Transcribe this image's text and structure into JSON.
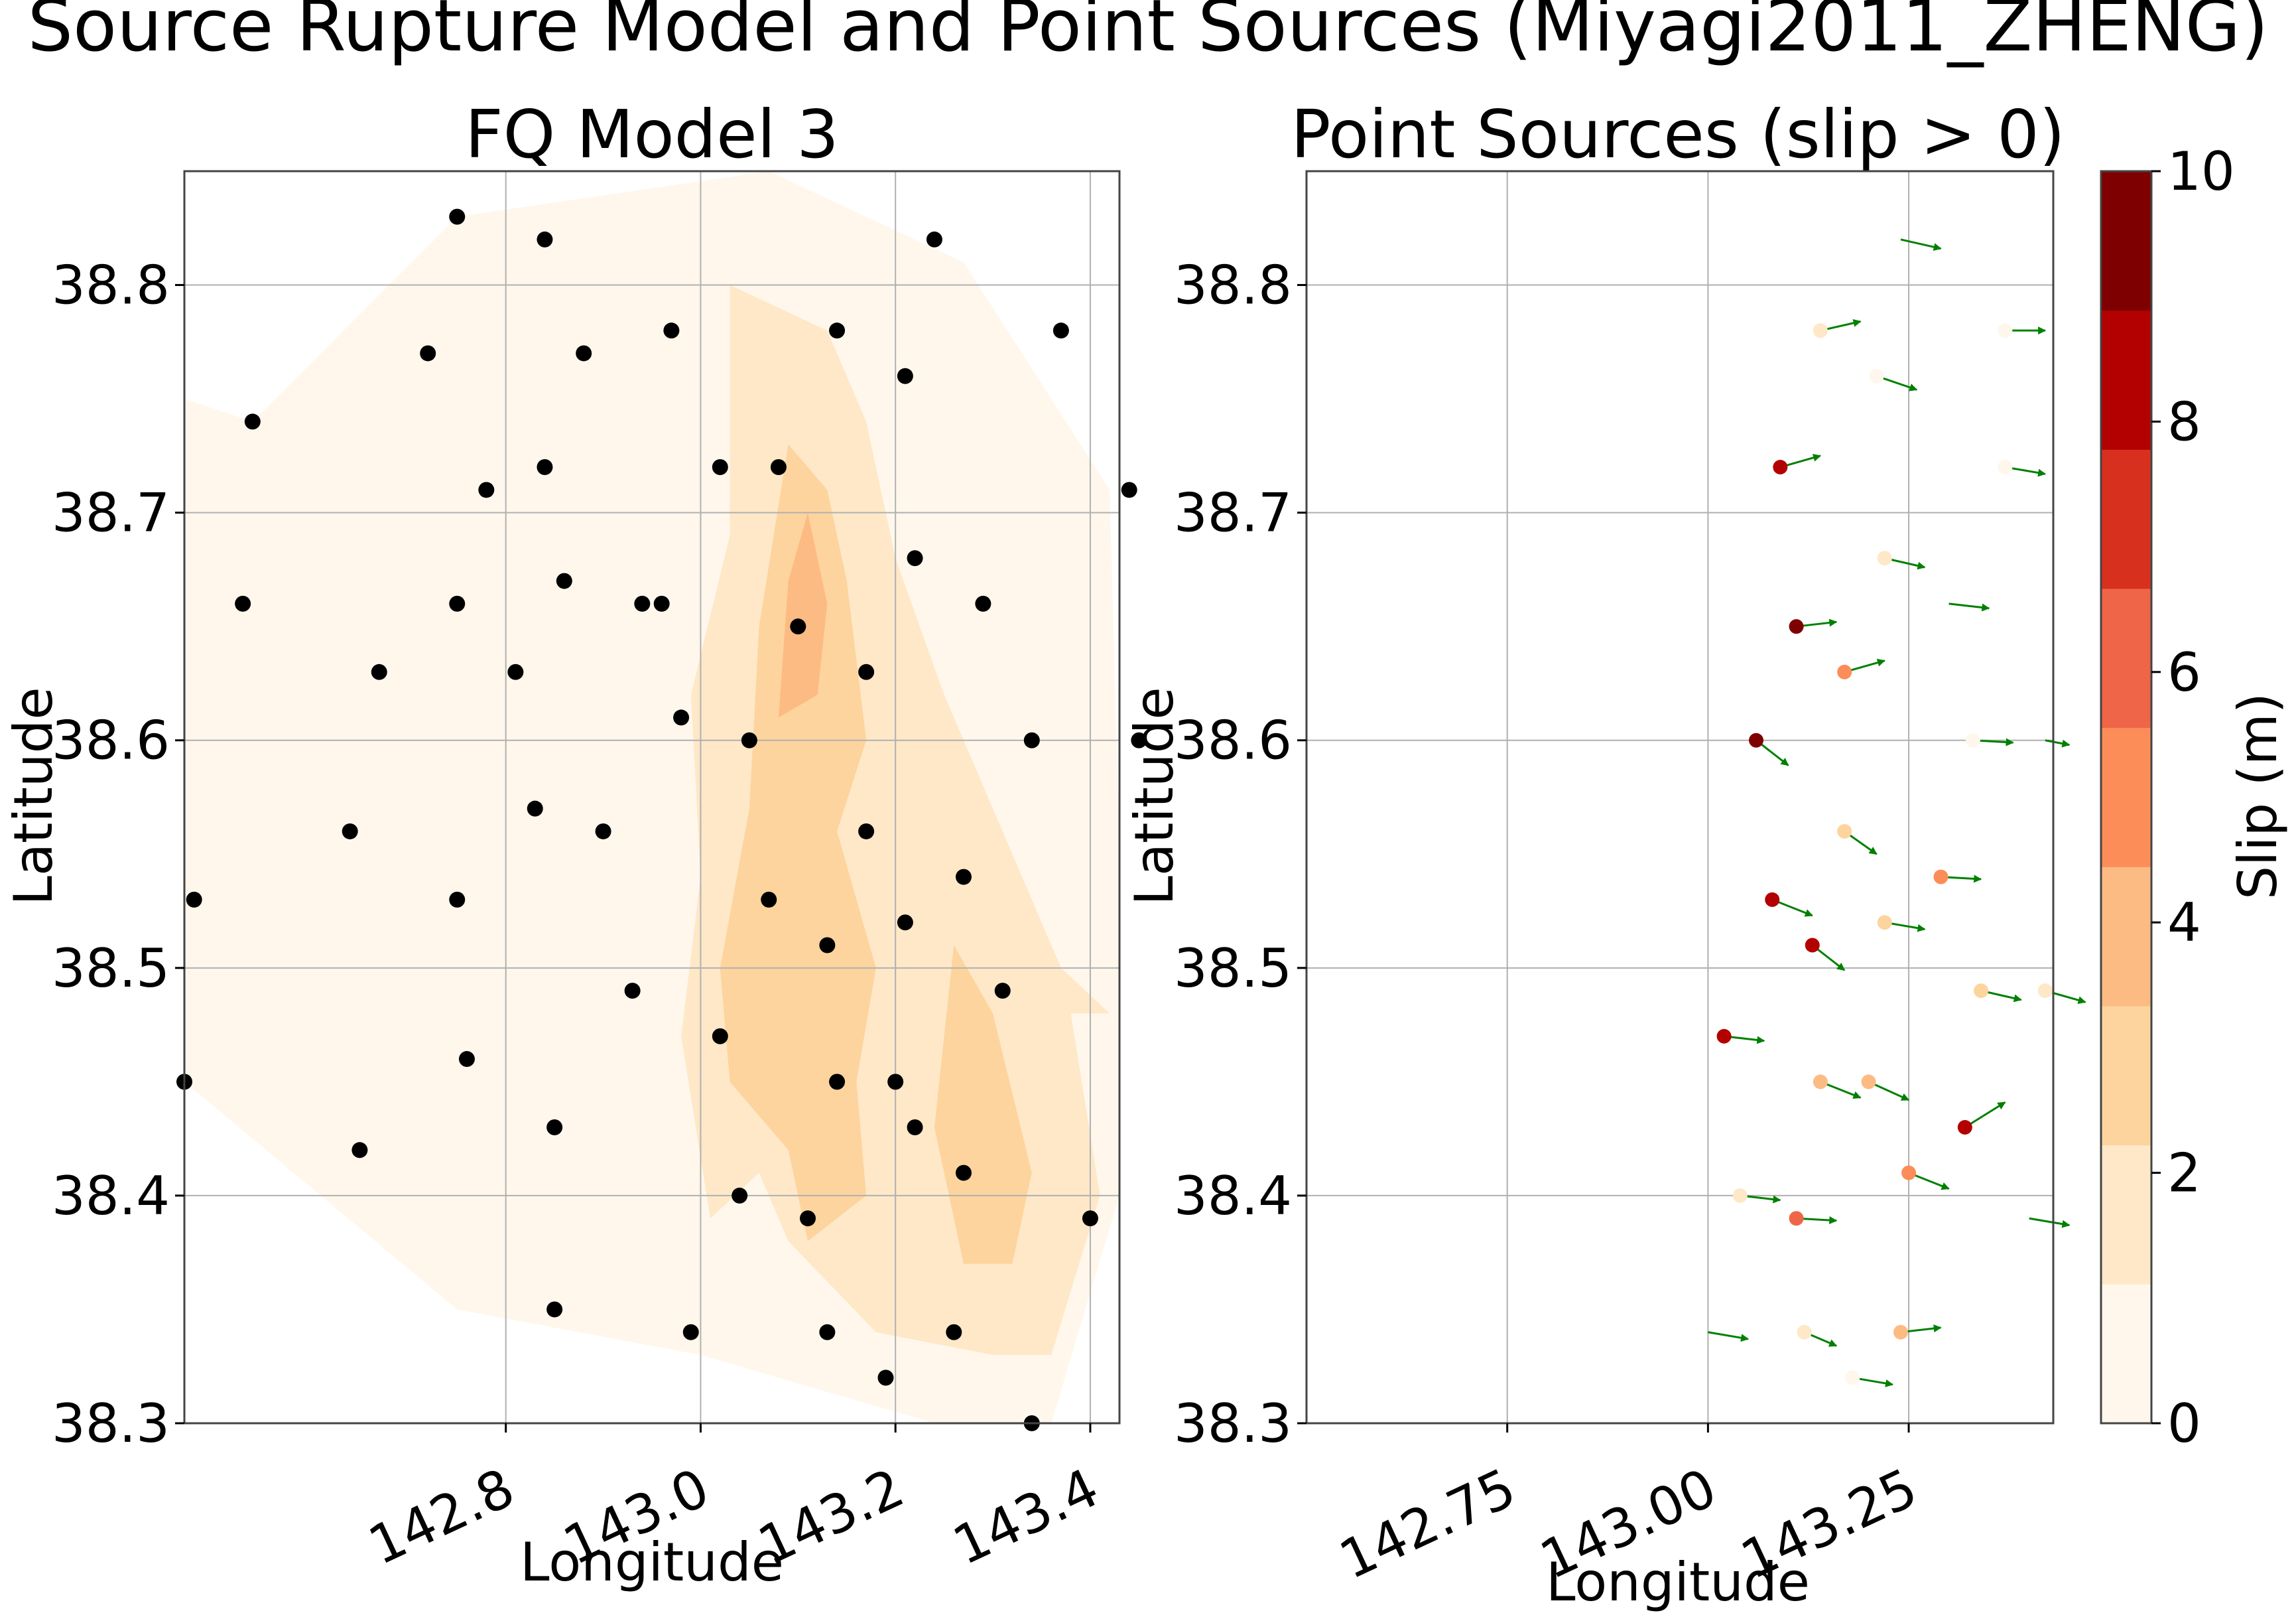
{
  "figure": {
    "suptitle": "Source Rupture Model and Point Sources (Miyagi2011_ZHENG)"
  },
  "chart_data": [
    {
      "type": "contour",
      "title": "FQ Model 3",
      "xlabel": "Longitude",
      "ylabel": "Latitude",
      "xlim": [
        142.47,
        143.43
      ],
      "ylim": [
        38.3,
        38.85
      ],
      "xticks": [
        142.8,
        143.0,
        143.2,
        143.4
      ],
      "xtick_labels": [
        "142.8",
        "143.0",
        "143.2",
        "143.4"
      ],
      "yticks": [
        38.3,
        38.4,
        38.5,
        38.6,
        38.7,
        38.8
      ],
      "ytick_labels": [
        "38.3",
        "38.4",
        "38.5",
        "38.6",
        "38.7",
        "38.8"
      ],
      "grid": true,
      "colormap": "OrRd",
      "contour_levels": [
        0,
        1,
        2,
        3,
        4,
        5,
        6,
        7,
        8,
        9,
        10
      ],
      "contours": [
        {
          "level": 0,
          "color": "#fff7ec",
          "polygon": [
            [
              142.75,
              38.83
            ],
            [
              143.07,
              38.85
            ],
            [
              143.27,
              38.81
            ],
            [
              143.42,
              38.71
            ],
            [
              143.43,
              38.55
            ],
            [
              143.43,
              38.4
            ],
            [
              143.36,
              38.3
            ],
            [
              143.32,
              38.29
            ],
            [
              143.0,
              38.33
            ],
            [
              142.75,
              38.35
            ],
            [
              142.47,
              38.45
            ],
            [
              142.47,
              38.55
            ],
            [
              142.47,
              38.75
            ],
            [
              142.54,
              38.74
            ]
          ]
        },
        {
          "level": 1,
          "color": "#fee8c8",
          "polygon": [
            [
              143.03,
              38.8
            ],
            [
              143.13,
              38.78
            ],
            [
              143.17,
              38.74
            ],
            [
              143.2,
              38.68
            ],
            [
              143.25,
              38.62
            ],
            [
              143.3,
              38.57
            ],
            [
              143.37,
              38.5
            ],
            [
              143.42,
              38.48
            ],
            [
              143.38,
              38.48
            ],
            [
              143.41,
              38.4
            ],
            [
              143.36,
              38.33
            ],
            [
              143.3,
              38.33
            ],
            [
              143.18,
              38.34
            ],
            [
              143.09,
              38.38
            ],
            [
              143.06,
              38.41
            ],
            [
              143.01,
              38.39
            ],
            [
              142.98,
              38.47
            ],
            [
              143.0,
              38.54
            ],
            [
              142.99,
              38.62
            ],
            [
              143.03,
              38.69
            ],
            [
              143.03,
              38.75
            ]
          ]
        },
        {
          "level": 2,
          "color": "#fdd49e",
          "polygon": [
            [
              143.09,
              38.73
            ],
            [
              143.13,
              38.71
            ],
            [
              143.15,
              38.67
            ],
            [
              143.17,
              38.6
            ],
            [
              143.14,
              38.56
            ],
            [
              143.18,
              38.5
            ],
            [
              143.16,
              38.45
            ],
            [
              143.17,
              38.4
            ],
            [
              143.11,
              38.38
            ],
            [
              143.09,
              38.42
            ],
            [
              143.03,
              38.45
            ],
            [
              143.02,
              38.5
            ],
            [
              143.05,
              38.57
            ],
            [
              143.06,
              38.65
            ]
          ]
        },
        {
          "level": 2,
          "color": "#fdd49e",
          "polygon": [
            [
              143.26,
              38.51
            ],
            [
              143.3,
              38.48
            ],
            [
              143.34,
              38.41
            ],
            [
              143.32,
              38.37
            ],
            [
              143.27,
              38.37
            ],
            [
              143.24,
              38.43
            ]
          ]
        },
        {
          "level": 3,
          "color": "#fdbb84",
          "polygon": [
            [
              143.11,
              38.7
            ],
            [
              143.13,
              38.66
            ],
            [
              143.12,
              38.62
            ],
            [
              143.08,
              38.61
            ],
            [
              143.09,
              38.67
            ]
          ]
        }
      ],
      "points": {
        "color": "#000000",
        "lon": [
          142.75,
          142.84,
          142.72,
          142.88,
          142.97,
          142.54,
          142.78,
          142.84,
          143.02,
          143.14,
          143.24,
          143.37,
          143.21,
          142.96,
          143.08,
          142.53,
          142.67,
          142.75,
          142.86,
          142.94,
          143.1,
          143.17,
          143.22,
          143.29,
          142.81,
          142.98,
          143.05,
          143.34,
          143.44,
          142.64,
          142.83,
          142.9,
          143.07,
          143.17,
          143.21,
          143.27,
          142.48,
          142.75,
          142.93,
          143.02,
          143.13,
          143.45,
          142.47,
          142.76,
          142.85,
          143.14,
          143.2,
          143.31,
          143.27,
          142.65,
          143.04,
          143.11,
          143.22,
          143.4,
          142.85,
          142.99,
          143.13,
          143.19,
          143.26,
          143.34
        ],
        "lat": [
          38.83,
          38.82,
          38.77,
          38.77,
          38.78,
          38.74,
          38.71,
          38.72,
          38.72,
          38.78,
          38.82,
          38.78,
          38.76,
          38.66,
          38.72,
          38.66,
          38.63,
          38.66,
          38.67,
          38.66,
          38.65,
          38.63,
          38.68,
          38.66,
          38.63,
          38.61,
          38.6,
          38.6,
          38.71,
          38.56,
          38.57,
          38.56,
          38.53,
          38.56,
          38.52,
          38.54,
          38.53,
          38.53,
          38.49,
          38.47,
          38.51,
          38.6,
          38.45,
          38.46,
          38.43,
          38.45,
          38.45,
          38.49,
          38.41,
          38.42,
          38.4,
          38.39,
          38.43,
          38.39,
          38.35,
          38.34,
          38.34,
          38.32,
          38.34,
          38.3
        ]
      }
    },
    {
      "type": "quiver",
      "title": "Point Sources (slip > 0)",
      "xlabel": "Longitude",
      "ylabel": "Latitude",
      "xlim": [
        142.5,
        143.43
      ],
      "ylim": [
        38.3,
        38.85
      ],
      "xticks": [
        142.75,
        143.0,
        143.25
      ],
      "xtick_labels": [
        "142.75",
        "143.00",
        "143.25"
      ],
      "yticks": [
        38.3,
        38.4,
        38.5,
        38.6,
        38.7,
        38.8
      ],
      "ytick_labels": [
        "38.3",
        "38.4",
        "38.5",
        "38.6",
        "38.7",
        "38.8"
      ],
      "grid": true,
      "arrow_color": "#008000",
      "sources": [
        {
          "lon": 143.24,
          "lat": 38.82,
          "slip": 0,
          "u": 0.05,
          "v": -0.004
        },
        {
          "lon": 143.14,
          "lat": 38.78,
          "slip": 1.5,
          "u": 0.05,
          "v": 0.004
        },
        {
          "lon": 143.37,
          "lat": 38.78,
          "slip": 1,
          "u": 0.05,
          "v": 0.0
        },
        {
          "lon": 143.21,
          "lat": 38.76,
          "slip": 1,
          "u": 0.05,
          "v": -0.006
        },
        {
          "lon": 143.09,
          "lat": 38.72,
          "slip": 8.5,
          "u": 0.05,
          "v": 0.005
        },
        {
          "lon": 143.37,
          "lat": 38.72,
          "slip": 1,
          "u": 0.05,
          "v": -0.003
        },
        {
          "lon": 143.22,
          "lat": 38.68,
          "slip": 1.5,
          "u": 0.05,
          "v": -0.004
        },
        {
          "lon": 143.3,
          "lat": 38.66,
          "slip": 0,
          "u": 0.05,
          "v": -0.002
        },
        {
          "lon": 143.11,
          "lat": 38.65,
          "slip": 9.5,
          "u": 0.05,
          "v": 0.002
        },
        {
          "lon": 143.17,
          "lat": 38.63,
          "slip": 5,
          "u": 0.05,
          "v": 0.005
        },
        {
          "lon": 143.06,
          "lat": 38.6,
          "slip": 9,
          "u": 0.04,
          "v": -0.011
        },
        {
          "lon": 143.33,
          "lat": 38.6,
          "slip": 1,
          "u": 0.05,
          "v": -0.001
        },
        {
          "lon": 143.42,
          "lat": 38.6,
          "slip": 0,
          "u": 0.03,
          "v": -0.002
        },
        {
          "lon": 143.17,
          "lat": 38.56,
          "slip": 3,
          "u": 0.04,
          "v": -0.01
        },
        {
          "lon": 143.29,
          "lat": 38.54,
          "slip": 4.5,
          "u": 0.05,
          "v": -0.001
        },
        {
          "lon": 143.08,
          "lat": 38.53,
          "slip": 8.5,
          "u": 0.05,
          "v": -0.007
        },
        {
          "lon": 143.22,
          "lat": 38.52,
          "slip": 3,
          "u": 0.05,
          "v": -0.003
        },
        {
          "lon": 143.13,
          "lat": 38.51,
          "slip": 8.5,
          "u": 0.04,
          "v": -0.011
        },
        {
          "lon": 143.34,
          "lat": 38.49,
          "slip": 2.5,
          "u": 0.05,
          "v": -0.004
        },
        {
          "lon": 143.42,
          "lat": 38.49,
          "slip": 2,
          "u": 0.05,
          "v": -0.005
        },
        {
          "lon": 143.02,
          "lat": 38.47,
          "slip": 8.5,
          "u": 0.05,
          "v": -0.002
        },
        {
          "lon": 143.2,
          "lat": 38.45,
          "slip": 3.5,
          "u": 0.05,
          "v": -0.008
        },
        {
          "lon": 143.14,
          "lat": 38.45,
          "slip": 3.5,
          "u": 0.05,
          "v": -0.007
        },
        {
          "lon": 143.32,
          "lat": 38.43,
          "slip": 8.5,
          "u": 0.05,
          "v": 0.011
        },
        {
          "lon": 143.25,
          "lat": 38.41,
          "slip": 5,
          "u": 0.05,
          "v": -0.007
        },
        {
          "lon": 143.04,
          "lat": 38.4,
          "slip": 1.5,
          "u": 0.05,
          "v": -0.002
        },
        {
          "lon": 143.11,
          "lat": 38.39,
          "slip": 6,
          "u": 0.05,
          "v": -0.001
        },
        {
          "lon": 143.4,
          "lat": 38.39,
          "slip": 0,
          "u": 0.05,
          "v": -0.003
        },
        {
          "lon": 143.0,
          "lat": 38.34,
          "slip": 0,
          "u": 0.05,
          "v": -0.003
        },
        {
          "lon": 143.12,
          "lat": 38.34,
          "slip": 1.5,
          "u": 0.04,
          "v": -0.006
        },
        {
          "lon": 143.24,
          "lat": 38.34,
          "slip": 3.5,
          "u": 0.05,
          "v": 0.002
        },
        {
          "lon": 143.18,
          "lat": 38.32,
          "slip": 1,
          "u": 0.05,
          "v": -0.003
        }
      ]
    }
  ],
  "colorbar": {
    "label": "Slip (m)",
    "min": 0,
    "max": 10,
    "ticks": [
      0,
      2,
      4,
      6,
      8,
      10
    ],
    "tick_labels": [
      "0",
      "2",
      "4",
      "6",
      "8",
      "10"
    ],
    "colors": [
      "#fff7ec",
      "#fee8c8",
      "#fdd49e",
      "#fdbb84",
      "#fc8d59",
      "#ef6548",
      "#d7301f",
      "#b30000",
      "#7f0000"
    ]
  }
}
